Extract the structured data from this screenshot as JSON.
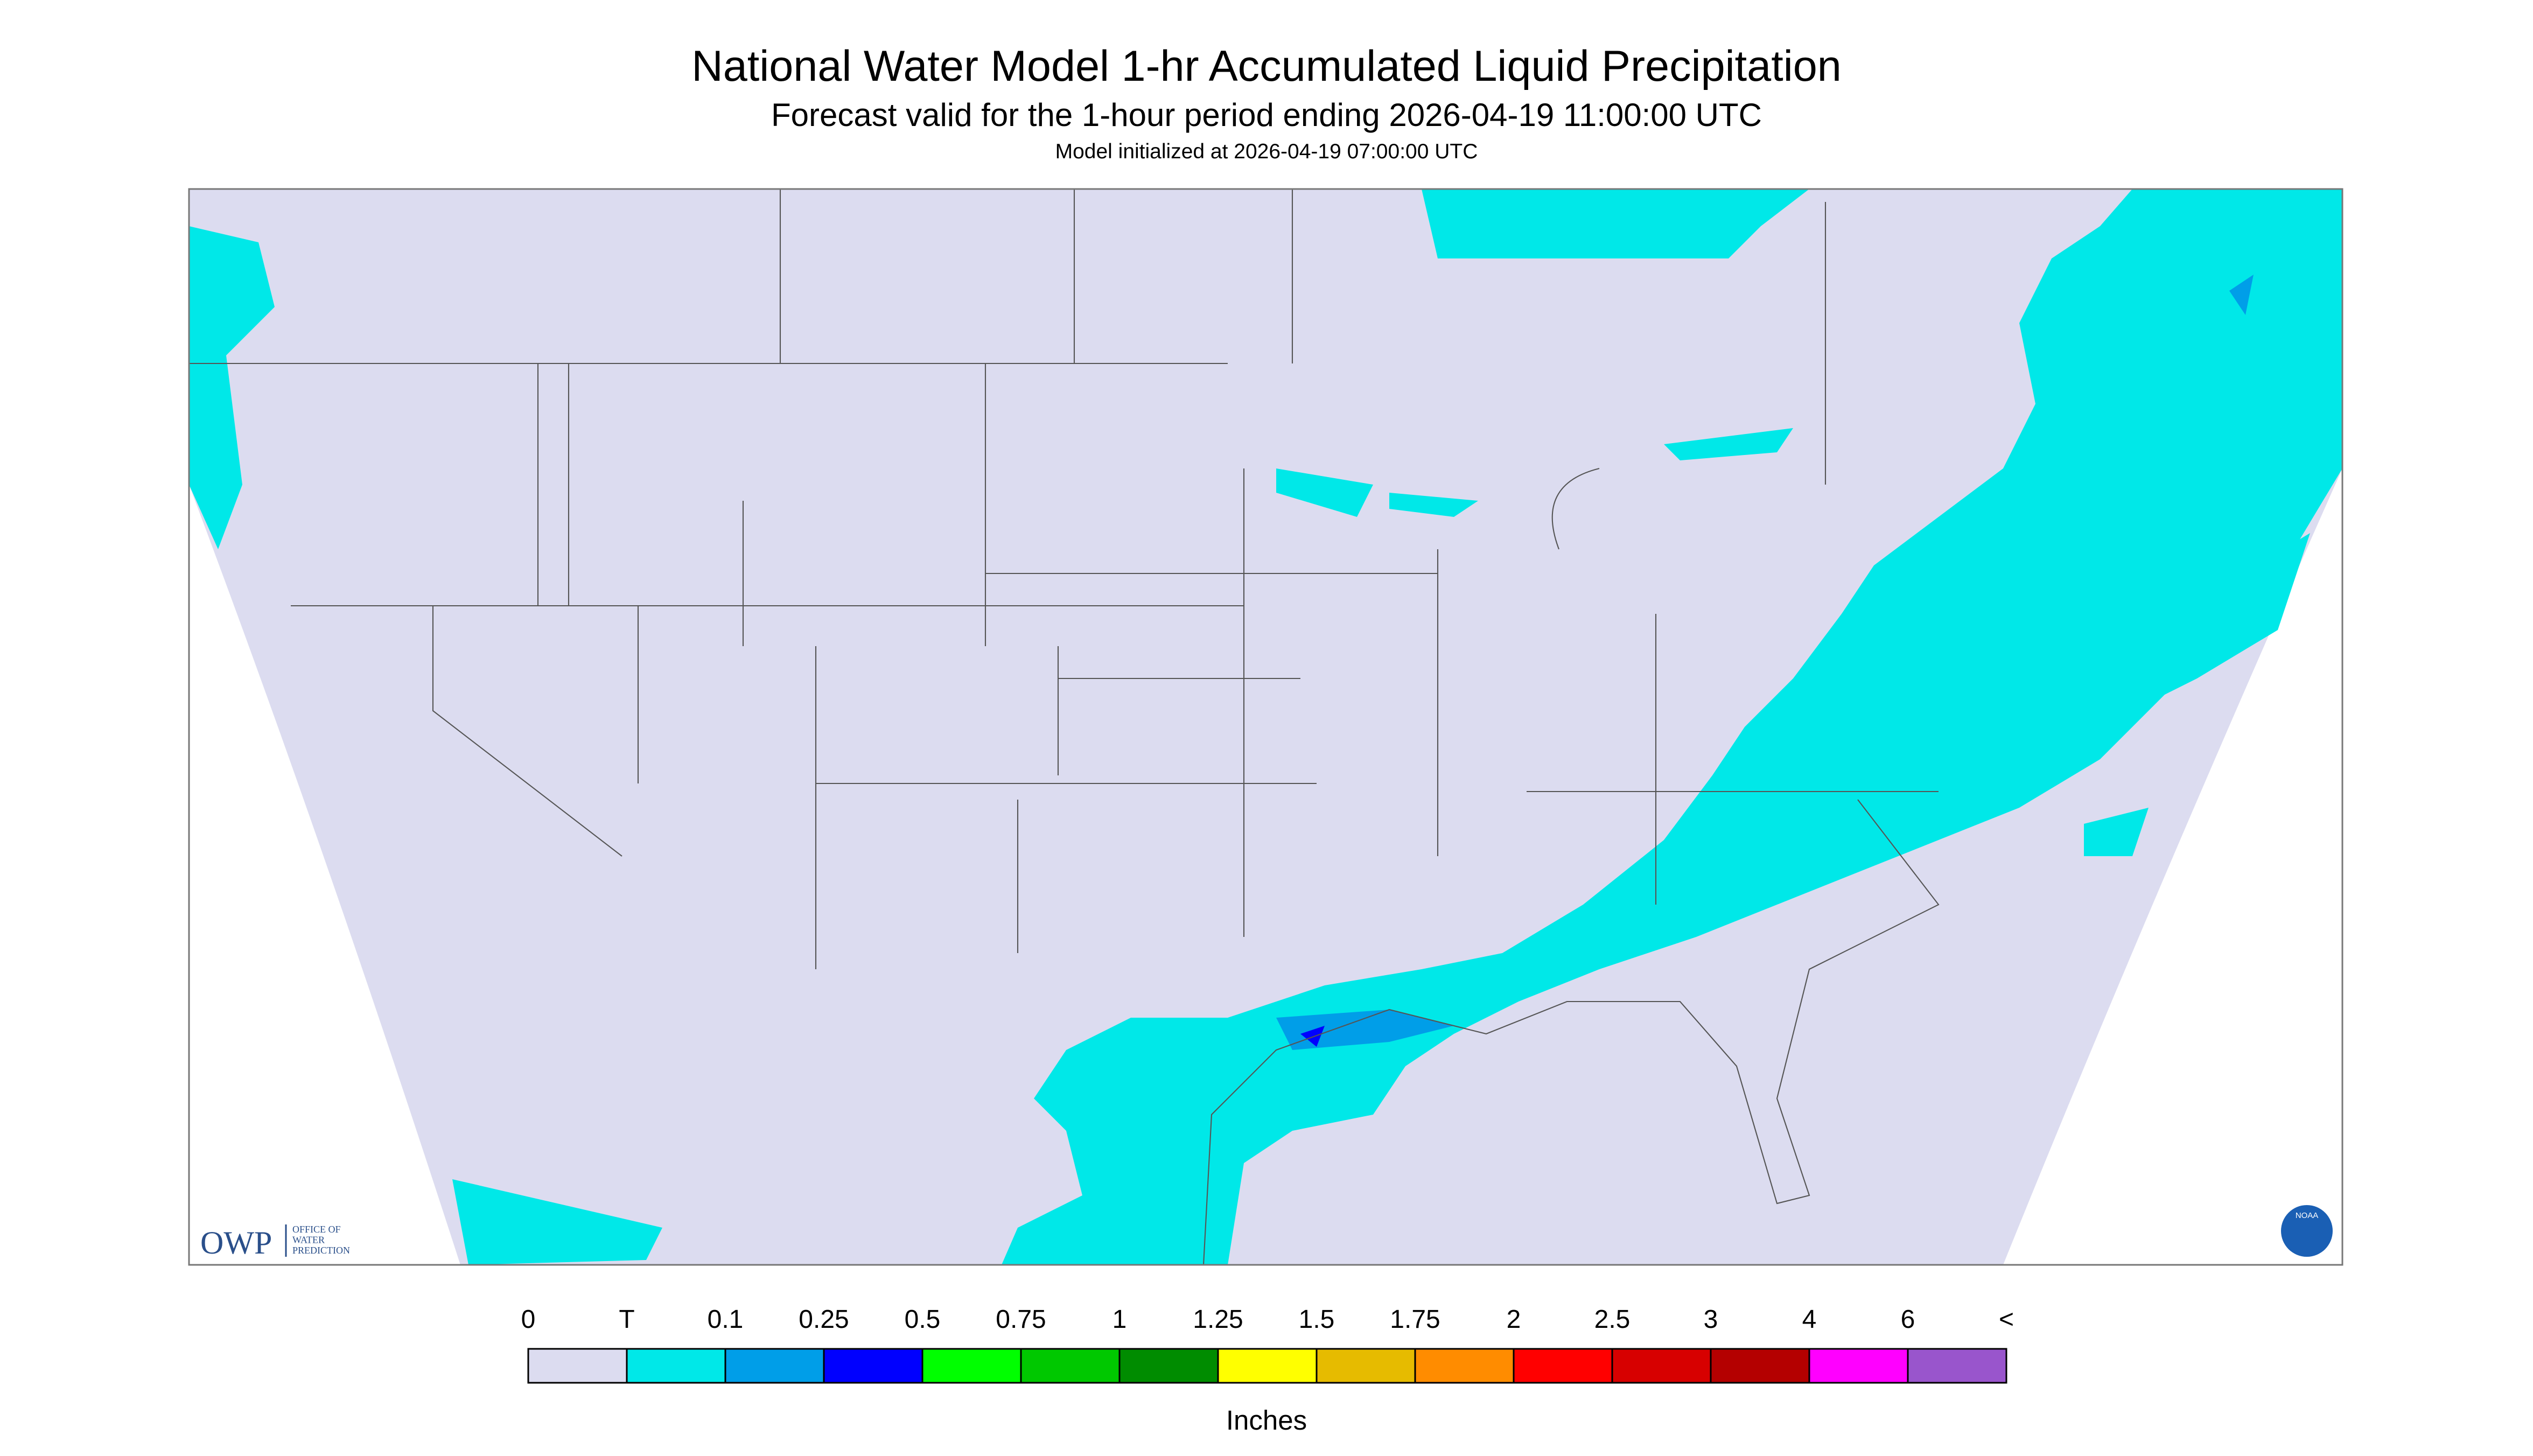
{
  "header": {
    "title": "National Water Model 1-hr Accumulated Liquid Precipitation",
    "subtitle": "Forecast valid for the 1-hour period ending 2026-04-19 11:00:00 UTC",
    "note": "Model initialized at 2026-04-19 07:00:00 UTC"
  },
  "logo": {
    "short": "OWP",
    "lines": [
      "OFFICE OF",
      "WATER",
      "PREDICTION"
    ],
    "agency": "NOAA"
  },
  "legend": {
    "labels": [
      "0",
      "T",
      "0.1",
      "0.25",
      "0.5",
      "0.75",
      "1",
      "1.25",
      "1.5",
      "1.75",
      "2",
      "2.5",
      "3",
      "4",
      "6",
      "<"
    ],
    "colors": [
      "#dcdcf0",
      "#00e8e8",
      "#009ee8",
      "#0000ff",
      "#00ff00",
      "#00c800",
      "#008c00",
      "#ffff00",
      "#e6bb00",
      "#ff8c00",
      "#ff0000",
      "#d70000",
      "#b40000",
      "#ff00ff",
      "#9955cc"
    ],
    "unit": "Inches"
  }
}
